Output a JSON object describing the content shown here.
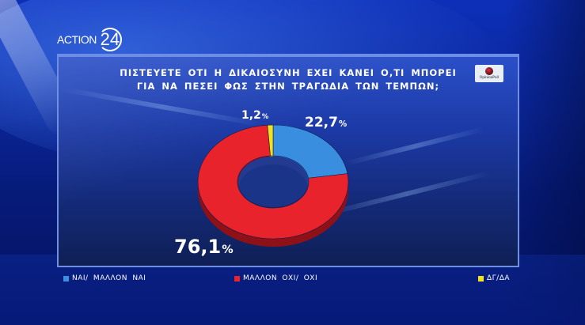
{
  "channel": {
    "logo_word": "ACTION",
    "logo_number": "24"
  },
  "pollster": {
    "name": "OpinionPoll"
  },
  "chart_data": {
    "type": "pie",
    "subtype": "donut",
    "title": "ΠΙΣΤΕΥΕΤΕ ΟΤΙ Η ΔΙΚΑΙΟΣΥΝΗ ΕΧΕΙ ΚΑΝΕΙ Ο,ΤΙ ΜΠΟΡΕΙ ΓΙΑ ΝΑ ΠΕΣΕΙ ΦΩΣ ΣΤΗΝ ΤΡΑΓΩΔΙΑ ΤΩΝ ΤΕΜΠΩΝ;",
    "title_lines": [
      "ΠΙΣΤΕΥΕΤΕ ΟΤΙ Η ΔΙΚΑΙΟΣΥΝΗ ΕΧΕΙ ΚΑΝΕΙ Ο,ΤΙ ΜΠΟΡΕΙ",
      "ΓΙΑ ΝΑ ΠΕΣΕΙ ΦΩΣ ΣΤΗΝ ΤΡΑΓΩΔΙΑ ΤΩΝ ΤΕΜΠΩΝ;"
    ],
    "categories": [
      "ΝΑΙ/ ΜΑΛΛΟΝ ΝΑΙ",
      "ΜΑΛΛΟΝ ΟΧΙ/ ΟΧΙ",
      "ΔΓ/ΔΑ"
    ],
    "values": [
      22.7,
      76.1,
      1.2
    ],
    "labels": [
      "22,7",
      "76,1",
      "1,2"
    ],
    "unit": "%",
    "colors": [
      "#3a8ee0",
      "#e8232c",
      "#f2e21a"
    ],
    "legend_position": "bottom"
  },
  "legend": [
    {
      "label": "ΝΑΙ/ ΜΑΛΛΟΝ ΝΑΙ",
      "color": "#3a8ee0"
    },
    {
      "label": "ΜΑΛΛΟΝ ΟΧΙ/ ΟΧΙ",
      "color": "#e8232c"
    },
    {
      "label": "ΔΓ/ΔΑ",
      "color": "#f2e21a"
    }
  ]
}
